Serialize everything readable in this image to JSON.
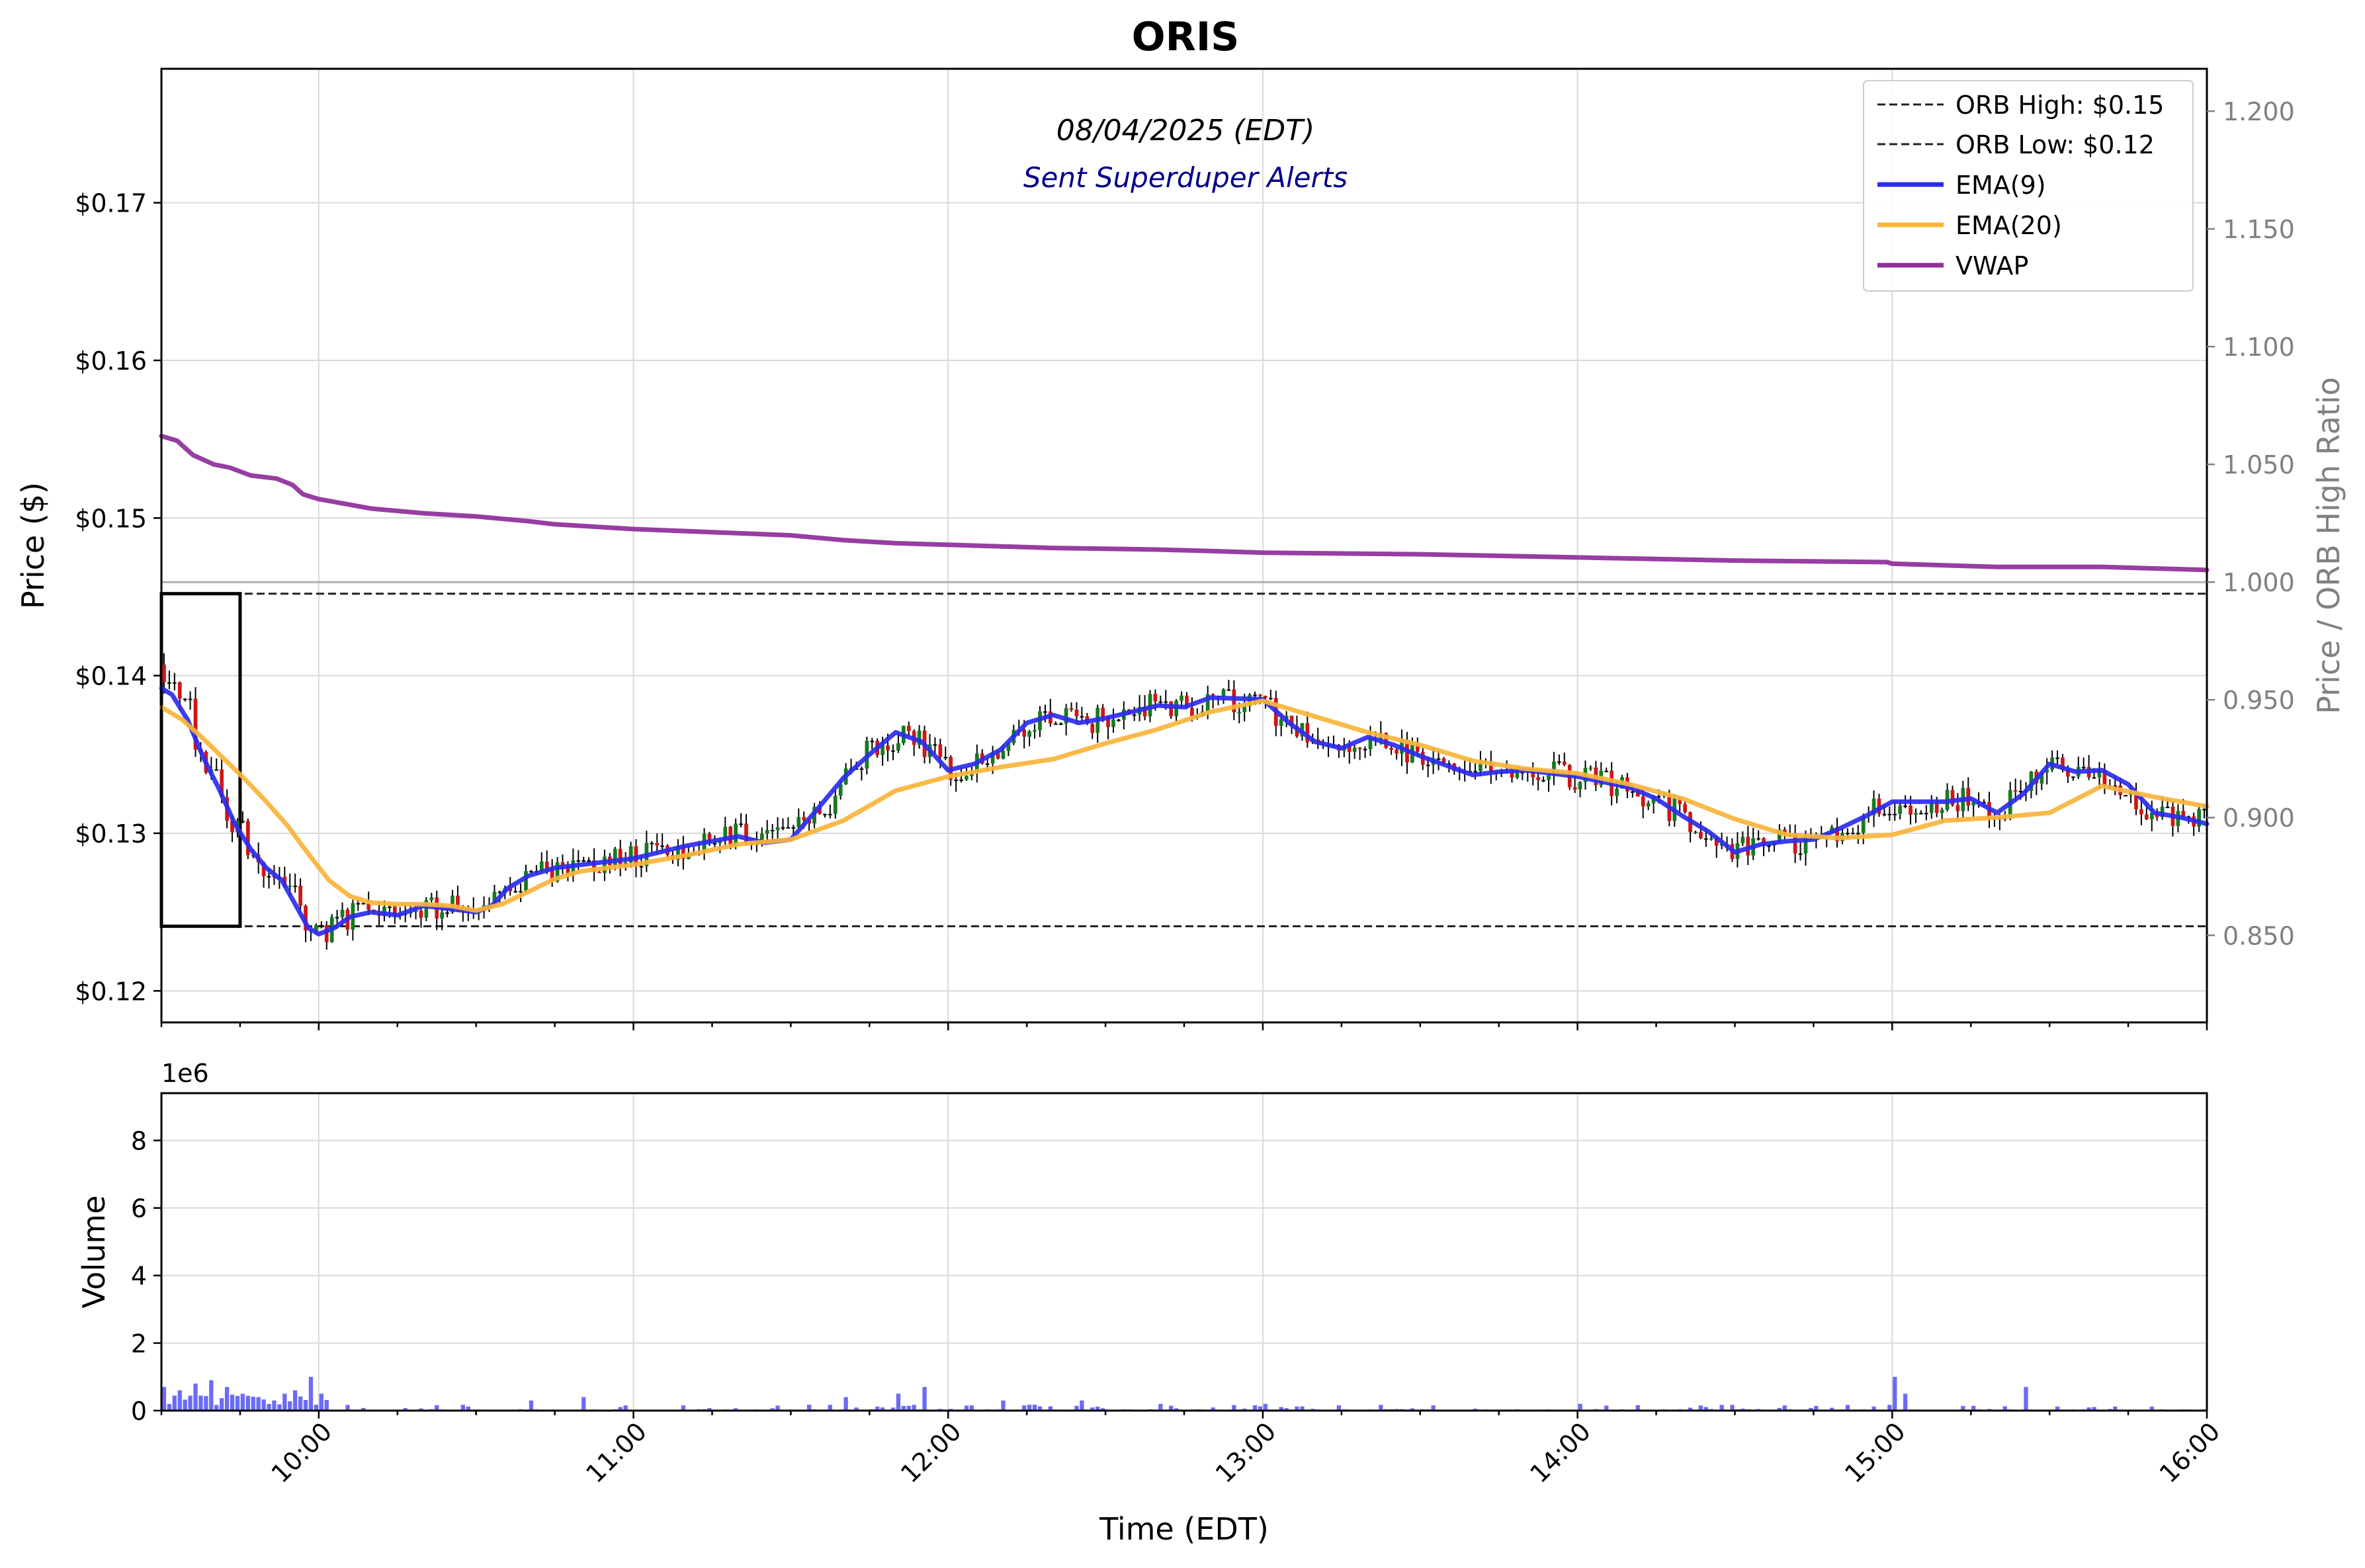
{
  "chart_data": [
    {
      "type": "candlestick",
      "title": "ORIS",
      "subtitle": "08/04/2025 (EDT)",
      "annotation": "Sent Superduper Alerts",
      "ylabel": "Price ($)",
      "ylabel_right": "Price / ORB High Ratio",
      "ylim": [
        0.118,
        0.1785
      ],
      "ylim_right": [
        0.813,
        1.218
      ],
      "xlim": [
        "09:30",
        "16:00"
      ],
      "y_ticks": [
        0.12,
        0.13,
        0.14,
        0.15,
        0.16,
        0.17
      ],
      "y_tick_labels": [
        "$0.12",
        "$0.13",
        "$0.14",
        "$0.15",
        "$0.16",
        "$0.17"
      ],
      "y_ticks_right": [
        0.85,
        0.9,
        0.95,
        1.0,
        1.05,
        1.1,
        1.15,
        1.2
      ],
      "y_tick_labels_right": [
        "0.850",
        "0.900",
        "0.950",
        "1.000",
        "1.050",
        "1.100",
        "1.150",
        "1.200"
      ],
      "grid": true,
      "legend_position": "top-right",
      "legend": [
        {
          "label": "ORB High: $0.15",
          "style": "dashed",
          "color": "#222222"
        },
        {
          "label": "ORB Low: $0.12",
          "style": "dashed",
          "color": "#222222"
        },
        {
          "label": "EMA(9)",
          "style": "solid",
          "color": "#2b2bef"
        },
        {
          "label": "EMA(20)",
          "style": "solid",
          "color": "#f9b43a"
        },
        {
          "label": "VWAP",
          "style": "solid",
          "color": "#8e2e9a"
        }
      ],
      "orb_high": 0.1452,
      "orb_low": 0.1241,
      "orb_window": [
        "09:30",
        "09:45"
      ],
      "ratio_reference_line": 1.0,
      "series": [
        {
          "name": "VWAP",
          "color": "#8e2e9a",
          "points": [
            [
              "09:30",
              0.1552
            ],
            [
              "09:33",
              0.1549
            ],
            [
              "09:36",
              0.154
            ],
            [
              "09:40",
              0.1534
            ],
            [
              "09:43",
              0.1532
            ],
            [
              "09:47",
              0.1527
            ],
            [
              "09:52",
              0.1525
            ],
            [
              "09:55",
              0.1521
            ],
            [
              "09:57",
              0.1515
            ],
            [
              "10:00",
              0.1512
            ],
            [
              "10:05",
              0.1509
            ],
            [
              "10:10",
              0.1506
            ],
            [
              "10:20",
              0.1503
            ],
            [
              "10:30",
              0.1501
            ],
            [
              "10:40",
              0.1498
            ],
            [
              "10:45",
              0.1496
            ],
            [
              "11:00",
              0.1493
            ],
            [
              "11:15",
              0.1491
            ],
            [
              "11:30",
              0.1489
            ],
            [
              "11:40",
              0.1486
            ],
            [
              "11:50",
              0.1484
            ],
            [
              "12:00",
              0.1483
            ],
            [
              "12:20",
              0.1481
            ],
            [
              "12:40",
              0.148
            ],
            [
              "12:50",
              0.1479
            ],
            [
              "13:00",
              0.1478
            ],
            [
              "13:30",
              0.1477
            ],
            [
              "14:00",
              0.1475
            ],
            [
              "14:30",
              0.1473
            ],
            [
              "14:59",
              0.1472
            ],
            [
              "15:00",
              0.1471
            ],
            [
              "15:20",
              0.1469
            ],
            [
              "15:40",
              0.1469
            ],
            [
              "16:00",
              0.1467
            ]
          ]
        },
        {
          "name": "EMA(9)",
          "color": "#2b2bef",
          "points": [
            [
              "09:30",
              0.1392
            ],
            [
              "09:32",
              0.1388
            ],
            [
              "09:35",
              0.1372
            ],
            [
              "09:38",
              0.1348
            ],
            [
              "09:41",
              0.1328
            ],
            [
              "09:44",
              0.1306
            ],
            [
              "09:47",
              0.129
            ],
            [
              "09:50",
              0.1278
            ],
            [
              "09:53",
              0.127
            ],
            [
              "09:55",
              0.1258
            ],
            [
              "09:58",
              0.124
            ],
            [
              "10:00",
              0.1236
            ],
            [
              "10:03",
              0.124
            ],
            [
              "10:06",
              0.1247
            ],
            [
              "10:10",
              0.125
            ],
            [
              "10:15",
              0.1248
            ],
            [
              "10:20",
              0.1254
            ],
            [
              "10:25",
              0.1252
            ],
            [
              "10:30",
              0.125
            ],
            [
              "10:33",
              0.1254
            ],
            [
              "10:36",
              0.1265
            ],
            [
              "10:40",
              0.1273
            ],
            [
              "10:45",
              0.1278
            ],
            [
              "10:50",
              0.128
            ],
            [
              "11:00",
              0.1284
            ],
            [
              "11:10",
              0.1292
            ],
            [
              "11:20",
              0.1298
            ],
            [
              "11:25",
              0.1294
            ],
            [
              "11:30",
              0.1296
            ],
            [
              "11:35",
              0.1315
            ],
            [
              "11:40",
              0.1335
            ],
            [
              "11:45",
              0.135
            ],
            [
              "11:50",
              0.1364
            ],
            [
              "11:55",
              0.1358
            ],
            [
              "12:00",
              0.134
            ],
            [
              "12:05",
              0.1344
            ],
            [
              "12:10",
              0.1353
            ],
            [
              "12:15",
              0.137
            ],
            [
              "12:20",
              0.1375
            ],
            [
              "12:25",
              0.137
            ],
            [
              "12:30",
              0.1373
            ],
            [
              "12:40",
              0.1381
            ],
            [
              "12:45",
              0.138
            ],
            [
              "12:50",
              0.1386
            ],
            [
              "13:00",
              0.1385
            ],
            [
              "13:05",
              0.137
            ],
            [
              "13:10",
              0.1358
            ],
            [
              "13:15",
              0.1354
            ],
            [
              "13:20",
              0.1361
            ],
            [
              "13:25",
              0.1356
            ],
            [
              "13:30",
              0.1349
            ],
            [
              "13:35",
              0.1343
            ],
            [
              "13:40",
              0.1337
            ],
            [
              "13:45",
              0.1339
            ],
            [
              "13:50",
              0.134
            ],
            [
              "14:00",
              0.1336
            ],
            [
              "14:10",
              0.1329
            ],
            [
              "14:15",
              0.1322
            ],
            [
              "14:20",
              0.1311
            ],
            [
              "14:25",
              0.1301
            ],
            [
              "14:30",
              0.1288
            ],
            [
              "14:35",
              0.1293
            ],
            [
              "14:40",
              0.1295
            ],
            [
              "14:45",
              0.1296
            ],
            [
              "14:50",
              0.1303
            ],
            [
              "14:55",
              0.1311
            ],
            [
              "15:00",
              0.132
            ],
            [
              "15:10",
              0.132
            ],
            [
              "15:15",
              0.1322
            ],
            [
              "15:20",
              0.1313
            ],
            [
              "15:25",
              0.1325
            ],
            [
              "15:30",
              0.1344
            ],
            [
              "15:35",
              0.1339
            ],
            [
              "15:40",
              0.134
            ],
            [
              "15:45",
              0.1331
            ],
            [
              "15:50",
              0.1313
            ],
            [
              "15:55",
              0.131
            ],
            [
              "16:00",
              0.1306
            ]
          ]
        },
        {
          "name": "EMA(20)",
          "color": "#f9b43a",
          "points": [
            [
              "09:30",
              0.138
            ],
            [
              "09:34",
              0.1372
            ],
            [
              "09:38",
              0.136
            ],
            [
              "09:42",
              0.1347
            ],
            [
              "09:46",
              0.1334
            ],
            [
              "09:50",
              0.132
            ],
            [
              "09:54",
              0.1305
            ],
            [
              "09:58",
              0.1287
            ],
            [
              "10:02",
              0.127
            ],
            [
              "10:06",
              0.126
            ],
            [
              "10:10",
              0.1256
            ],
            [
              "10:15",
              0.1255
            ],
            [
              "10:20",
              0.1255
            ],
            [
              "10:25",
              0.1254
            ],
            [
              "10:30",
              0.1251
            ],
            [
              "10:35",
              0.1255
            ],
            [
              "10:40",
              0.1263
            ],
            [
              "10:45",
              0.1271
            ],
            [
              "10:50",
              0.1276
            ],
            [
              "11:00",
              0.128
            ],
            [
              "11:10",
              0.1286
            ],
            [
              "11:20",
              0.1293
            ],
            [
              "11:30",
              0.1296
            ],
            [
              "11:40",
              0.1308
            ],
            [
              "11:50",
              0.1327
            ],
            [
              "12:00",
              0.1336
            ],
            [
              "12:10",
              0.1342
            ],
            [
              "12:20",
              0.1347
            ],
            [
              "12:30",
              0.1357
            ],
            [
              "12:40",
              0.1366
            ],
            [
              "12:50",
              0.1377
            ],
            [
              "13:00",
              0.1384
            ],
            [
              "13:10",
              0.1374
            ],
            [
              "13:20",
              0.1364
            ],
            [
              "13:30",
              0.1356
            ],
            [
              "13:40",
              0.1346
            ],
            [
              "13:50",
              0.1341
            ],
            [
              "14:00",
              0.1338
            ],
            [
              "14:10",
              0.1331
            ],
            [
              "14:20",
              0.1322
            ],
            [
              "14:30",
              0.1309
            ],
            [
              "14:40",
              0.1299
            ],
            [
              "14:50",
              0.1297
            ],
            [
              "15:00",
              0.1299
            ],
            [
              "15:10",
              0.1308
            ],
            [
              "15:20",
              0.131
            ],
            [
              "15:30",
              0.1313
            ],
            [
              "15:40",
              0.133
            ],
            [
              "15:50",
              0.1323
            ],
            [
              "16:00",
              0.1317
            ]
          ]
        }
      ]
    },
    {
      "type": "bar",
      "ylabel": "Volume",
      "xlabel": "Time (EDT)",
      "y_multiplier": "1e6",
      "ylim": [
        0,
        9.4
      ],
      "y_ticks": [
        0,
        2,
        4,
        6,
        8
      ],
      "y_tick_labels": [
        "0",
        "2",
        "4",
        "6",
        "8"
      ],
      "x_ticks": [
        "10:00",
        "11:00",
        "12:00",
        "13:00",
        "14:00",
        "15:00",
        "16:00"
      ],
      "color": "#6b6bf7",
      "grid": true,
      "volume_peaks": [
        [
          "09:30",
          0.7
        ],
        [
          "09:33",
          0.6
        ],
        [
          "09:36",
          0.8
        ],
        [
          "09:39",
          0.9
        ],
        [
          "09:42",
          0.7
        ],
        [
          "09:45",
          0.5
        ],
        [
          "09:48",
          0.4
        ],
        [
          "09:51",
          0.3
        ],
        [
          "09:53",
          0.5
        ],
        [
          "09:55",
          0.6
        ],
        [
          "09:58",
          1.0
        ],
        [
          "10:00",
          0.5
        ],
        [
          "10:40",
          0.3
        ],
        [
          "10:50",
          0.4
        ],
        [
          "11:40",
          0.4
        ],
        [
          "11:50",
          0.5
        ],
        [
          "11:55",
          0.7
        ],
        [
          "12:10",
          0.3
        ],
        [
          "12:25",
          0.3
        ],
        [
          "12:40",
          0.2
        ],
        [
          "13:00",
          0.2
        ],
        [
          "14:00",
          0.2
        ],
        [
          "15:00",
          1.0
        ],
        [
          "15:02",
          0.5
        ],
        [
          "15:25",
          0.7
        ],
        [
          "16:00",
          0.1
        ]
      ]
    }
  ]
}
